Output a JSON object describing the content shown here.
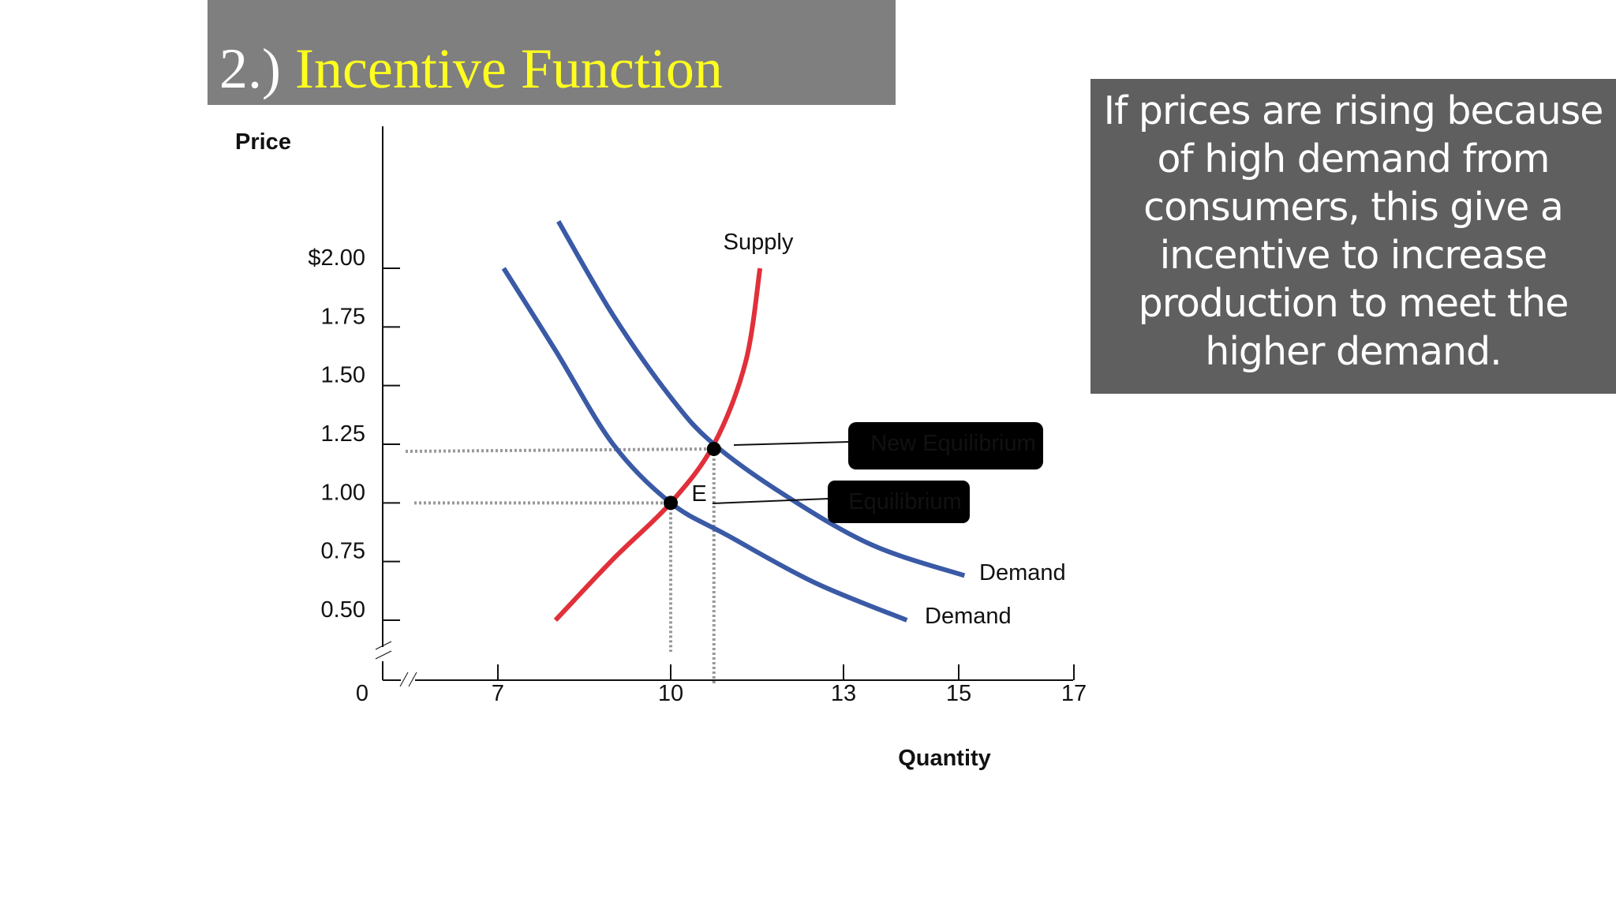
{
  "title": {
    "number": "2.)",
    "main": "Incentive Function"
  },
  "note": "If prices are rising because of high demand from consumers, this give a incentive to increase production to meet the higher demand.",
  "colors": {
    "supply": "#e1303a",
    "demand": "#3a5aa6",
    "title_bar": "#7f7f7f",
    "title_accent": "#ffff1f",
    "note_box": "#5f5f5f"
  },
  "chart_data": {
    "type": "line",
    "ylabel": "Price",
    "xlabel": "Quantity",
    "y_ticks": [
      "$2.00",
      "1.75",
      "1.50",
      "1.25",
      "1.00",
      "0.75",
      "0.50"
    ],
    "y_tick_values": [
      2.0,
      1.75,
      1.5,
      1.25,
      1.0,
      0.75,
      0.5
    ],
    "x_ticks": [
      "7",
      "10",
      "13",
      "15",
      "17"
    ],
    "x_tick_values": [
      7,
      10,
      13,
      15,
      17
    ],
    "origin_label": "0",
    "axis_breaks": true,
    "xlim": [
      5,
      17
    ],
    "ylim": [
      0.25,
      2.25
    ],
    "series": [
      {
        "name": "Supply",
        "role": "supply",
        "x": [
          8,
          9,
          10,
          10.75,
          11.3,
          11.55
        ],
        "y": [
          0.5,
          0.76,
          1.0,
          1.25,
          1.6,
          2.0
        ]
      },
      {
        "name": "Demand",
        "role": "demand",
        "x": [
          7.1,
          8,
          9,
          10,
          11,
          12.5,
          14.1
        ],
        "y": [
          2.0,
          1.65,
          1.25,
          1.0,
          0.86,
          0.66,
          0.5
        ]
      },
      {
        "name": "Demand",
        "role": "demand",
        "x": [
          8.05,
          9,
          10,
          10.75,
          12,
          13.5,
          15.1
        ],
        "y": [
          2.2,
          1.8,
          1.45,
          1.25,
          1.03,
          0.82,
          0.69
        ]
      }
    ],
    "points": [
      {
        "x": 10,
        "y": 1.0,
        "marker_label": "E",
        "callout": "Equilibrium"
      },
      {
        "x": 10.75,
        "y": 1.23,
        "marker_label": "",
        "callout": "New Equilibrium"
      }
    ],
    "grid": false,
    "legend": "none"
  }
}
